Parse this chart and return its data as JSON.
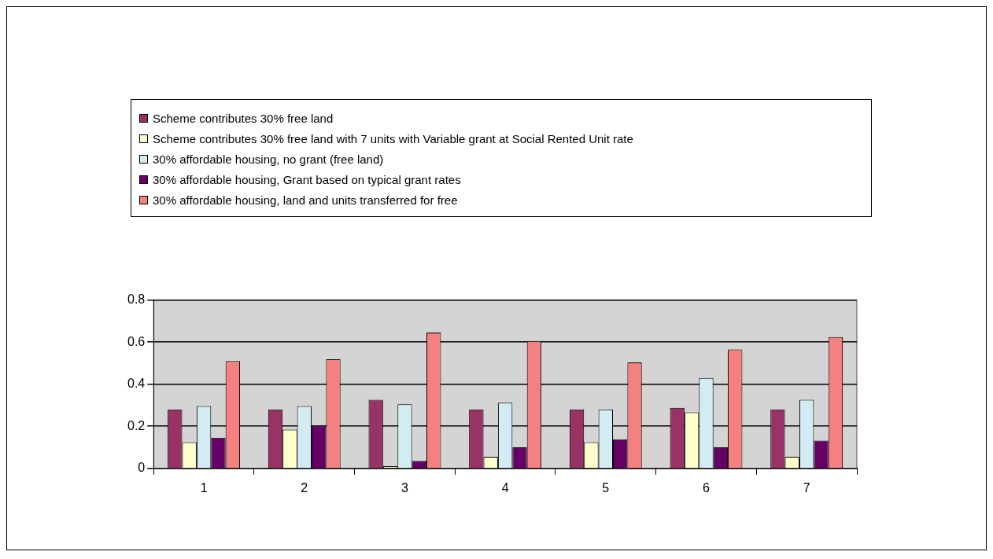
{
  "chart_data": {
    "type": "bar",
    "categories": [
      "1",
      "2",
      "3",
      "4",
      "5",
      "6",
      "7"
    ],
    "series": [
      {
        "name": "Scheme contributes 30% free land",
        "color": "#993366",
        "values": [
          0.28,
          0.28,
          0.326,
          0.28,
          0.28,
          0.288,
          0.28
        ]
      },
      {
        "name": "Scheme contributes 30% free land with 7 units with Variable grant at Social Rented Unit rate",
        "color": "#ffffcc",
        "values": [
          0.124,
          0.184,
          0.01,
          0.055,
          0.124,
          0.266,
          0.055
        ]
      },
      {
        "name": "30% affordable housing, no grant (free land)",
        "color": "#d3ecf3",
        "values": [
          0.296,
          0.296,
          0.305,
          0.312,
          0.28,
          0.43,
          0.326
        ]
      },
      {
        "name": "30% affordable housing, Grant based on typical grant rates",
        "color": "#660066",
        "values": [
          0.146,
          0.204,
          0.036,
          0.1,
          0.138,
          0.1,
          0.132
        ]
      },
      {
        "name": "30% affordable housing, land and units transferred for free",
        "color": "#f48080",
        "values": [
          0.51,
          0.518,
          0.645,
          0.605,
          0.503,
          0.565,
          0.624
        ]
      }
    ],
    "ylim": [
      0,
      0.8
    ],
    "yticks": [
      0,
      0.2,
      0.4,
      0.6,
      0.8
    ],
    "grid": "y",
    "legend": "top"
  }
}
